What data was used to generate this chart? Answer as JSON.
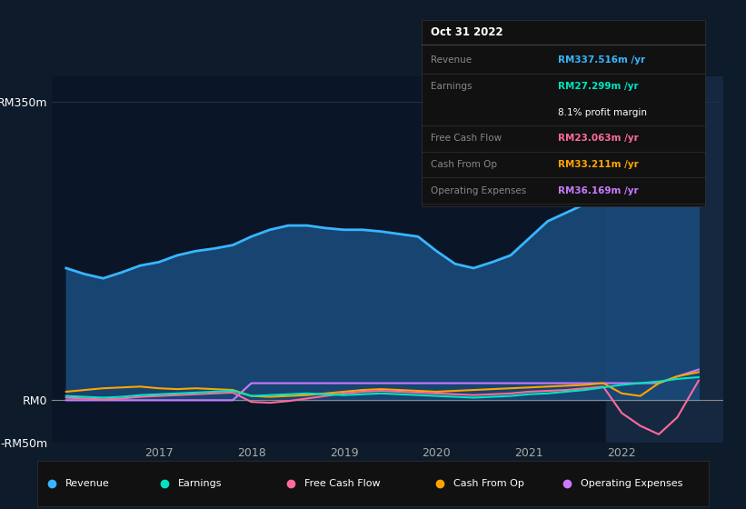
{
  "bg_color": "#0d1b2a",
  "plot_bg_color": "#0a1628",
  "grid_color": "#1e3050",
  "info_box": {
    "title": "Oct 31 2022",
    "rows": [
      {
        "label": "Revenue",
        "value": "RM337.516m /yr",
        "value_color": "#38b6ff"
      },
      {
        "label": "Earnings",
        "value": "RM27.299m /yr",
        "value_color": "#00e5c0"
      },
      {
        "label": "",
        "value": "8.1% profit margin",
        "value_color": "#ffffff"
      },
      {
        "label": "Free Cash Flow",
        "value": "RM23.063m /yr",
        "value_color": "#ff6b9d"
      },
      {
        "label": "Cash From Op",
        "value": "RM33.211m /yr",
        "value_color": "#ffa500"
      },
      {
        "label": "Operating Expenses",
        "value": "RM36.169m /yr",
        "value_color": "#c97aff"
      }
    ]
  },
  "ylim": [
    -50,
    380
  ],
  "yticks": [
    -50,
    0,
    350
  ],
  "ytick_labels": [
    "-RM50m",
    "RM0",
    "RM350m"
  ],
  "xlabel_years": [
    "2017",
    "2018",
    "2019",
    "2020",
    "2021",
    "2022"
  ],
  "x_tick_positions": [
    2017,
    2018,
    2019,
    2020,
    2021,
    2022
  ],
  "series": {
    "revenue": {
      "color": "#38b6ff",
      "label": "Revenue",
      "fill_color": "#1a4a7a",
      "x": [
        2016.0,
        2016.2,
        2016.4,
        2016.6,
        2016.8,
        2017.0,
        2017.2,
        2017.4,
        2017.6,
        2017.8,
        2018.0,
        2018.2,
        2018.4,
        2018.6,
        2018.8,
        2019.0,
        2019.2,
        2019.4,
        2019.6,
        2019.8,
        2020.0,
        2020.2,
        2020.4,
        2020.6,
        2020.8,
        2021.0,
        2021.2,
        2021.4,
        2021.6,
        2021.8,
        2022.0,
        2022.2,
        2022.4,
        2022.6,
        2022.83
      ],
      "y": [
        155,
        148,
        143,
        150,
        158,
        162,
        170,
        175,
        178,
        182,
        192,
        200,
        205,
        205,
        202,
        200,
        200,
        198,
        195,
        192,
        175,
        160,
        155,
        162,
        170,
        190,
        210,
        220,
        230,
        245,
        260,
        280,
        305,
        330,
        340
      ]
    },
    "earnings": {
      "color": "#00e5c0",
      "label": "Earnings",
      "x": [
        2016.0,
        2016.2,
        2016.4,
        2016.6,
        2016.8,
        2017.0,
        2017.2,
        2017.4,
        2017.6,
        2017.8,
        2018.0,
        2018.2,
        2018.4,
        2018.6,
        2018.8,
        2019.0,
        2019.2,
        2019.4,
        2019.6,
        2019.8,
        2020.0,
        2020.2,
        2020.4,
        2020.6,
        2020.8,
        2021.0,
        2021.2,
        2021.4,
        2021.6,
        2021.8,
        2022.0,
        2022.2,
        2022.4,
        2022.6,
        2022.83
      ],
      "y": [
        5,
        4,
        3,
        4,
        6,
        7,
        8,
        9,
        10,
        11,
        5,
        6,
        7,
        8,
        7,
        6,
        7,
        8,
        7,
        6,
        5,
        4,
        3,
        4,
        5,
        7,
        8,
        10,
        12,
        15,
        18,
        20,
        22,
        25,
        27
      ]
    },
    "free_cash_flow": {
      "color": "#ff6b9d",
      "label": "Free Cash Flow",
      "x": [
        2016.0,
        2016.2,
        2016.4,
        2016.6,
        2016.8,
        2017.0,
        2017.2,
        2017.4,
        2017.6,
        2017.8,
        2018.0,
        2018.2,
        2018.4,
        2018.6,
        2018.8,
        2019.0,
        2019.2,
        2019.4,
        2019.6,
        2019.8,
        2020.0,
        2020.2,
        2020.4,
        2020.6,
        2020.8,
        2021.0,
        2021.2,
        2021.4,
        2021.6,
        2021.8,
        2022.0,
        2022.2,
        2022.4,
        2022.6,
        2022.83
      ],
      "y": [
        3,
        2,
        1,
        2,
        4,
        5,
        6,
        7,
        8,
        9,
        -2,
        -3,
        -1,
        2,
        5,
        8,
        10,
        11,
        10,
        9,
        8,
        7,
        6,
        7,
        8,
        10,
        11,
        12,
        14,
        16,
        -15,
        -30,
        -40,
        -20,
        23
      ]
    },
    "cash_from_op": {
      "color": "#ffa500",
      "label": "Cash From Op",
      "x": [
        2016.0,
        2016.2,
        2016.4,
        2016.6,
        2016.8,
        2017.0,
        2017.2,
        2017.4,
        2017.6,
        2017.8,
        2018.0,
        2018.2,
        2018.4,
        2018.6,
        2018.8,
        2019.0,
        2019.2,
        2019.4,
        2019.6,
        2019.8,
        2020.0,
        2020.2,
        2020.4,
        2020.6,
        2020.8,
        2021.0,
        2021.2,
        2021.4,
        2021.6,
        2021.8,
        2022.0,
        2022.2,
        2022.4,
        2022.6,
        2022.83
      ],
      "y": [
        10,
        12,
        14,
        15,
        16,
        14,
        13,
        14,
        13,
        12,
        5,
        4,
        5,
        6,
        8,
        10,
        12,
        13,
        12,
        11,
        10,
        11,
        12,
        13,
        14,
        15,
        16,
        17,
        18,
        20,
        8,
        5,
        20,
        28,
        33
      ]
    },
    "operating_expenses": {
      "color": "#c97aff",
      "label": "Operating Expenses",
      "x": [
        2016.0,
        2016.2,
        2016.4,
        2016.6,
        2016.8,
        2017.0,
        2017.2,
        2017.4,
        2017.6,
        2017.8,
        2018.0,
        2018.2,
        2018.4,
        2018.6,
        2018.8,
        2019.0,
        2019.2,
        2019.4,
        2019.6,
        2019.8,
        2020.0,
        2020.2,
        2020.4,
        2020.6,
        2020.8,
        2021.0,
        2021.2,
        2021.4,
        2021.6,
        2021.8,
        2022.0,
        2022.2,
        2022.4,
        2022.6,
        2022.83
      ],
      "y": [
        0,
        0,
        0,
        0,
        0,
        0,
        0,
        0,
        0,
        0,
        20,
        20,
        20,
        20,
        20,
        20,
        20,
        20,
        20,
        20,
        20,
        20,
        20,
        20,
        20,
        20,
        20,
        20,
        20,
        20,
        20,
        20,
        20,
        28,
        36
      ]
    }
  },
  "legend": [
    {
      "label": "Revenue",
      "color": "#38b6ff"
    },
    {
      "label": "Earnings",
      "color": "#00e5c0"
    },
    {
      "label": "Free Cash Flow",
      "color": "#ff6b9d"
    },
    {
      "label": "Cash From Op",
      "color": "#ffa500"
    },
    {
      "label": "Operating Expenses",
      "color": "#c97aff"
    }
  ],
  "highlight_x_start": 2021.83,
  "highlight_x_end": 2023.1,
  "highlight_color": "#162840",
  "xlim": [
    2015.85,
    2023.1
  ]
}
